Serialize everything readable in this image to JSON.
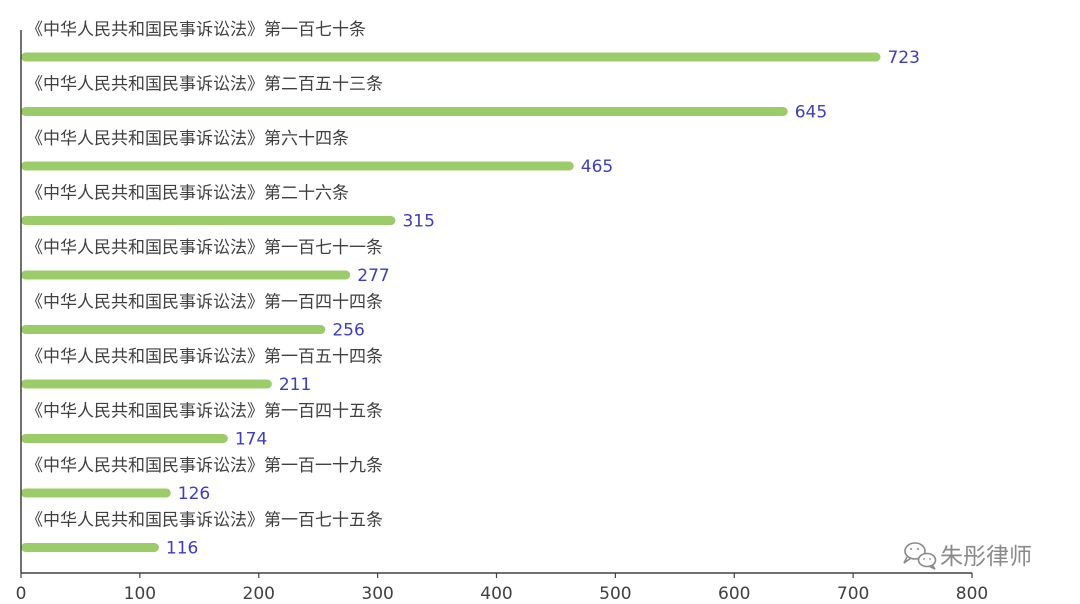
{
  "chart_data": {
    "type": "bar",
    "orientation": "horizontal",
    "categories": [
      "《中华人民共和国民事诉讼法》第一百七十条",
      "《中华人民共和国民事诉讼法》第二百五十三条",
      "《中华人民共和国民事诉讼法》第六十四条",
      "《中华人民共和国民事诉讼法》第二十六条",
      "《中华人民共和国民事诉讼法》第一百七十一条",
      "《中华人民共和国民事诉讼法》第一百四十四条",
      "《中华人民共和国民事诉讼法》第一百五十四条",
      "《中华人民共和国民事诉讼法》第一百四十五条",
      "《中华人民共和国民事诉讼法》第一百一十九条",
      "《中华人民共和国民事诉讼法》第一百七十五条"
    ],
    "values": [
      723,
      645,
      465,
      315,
      277,
      256,
      211,
      174,
      126,
      116
    ],
    "xlim": [
      0,
      800
    ],
    "xticks": [
      0,
      100,
      200,
      300,
      400,
      500,
      600,
      700,
      800
    ],
    "grid": false,
    "legend": "none",
    "data_labels": true,
    "colors": {
      "bar": "#9ccc6a",
      "value_label": "#3d3dc4",
      "category_label": "#404040",
      "axis": "#404040"
    }
  },
  "watermark": {
    "text": "朱彤律师",
    "icon": "wechat-icon"
  }
}
